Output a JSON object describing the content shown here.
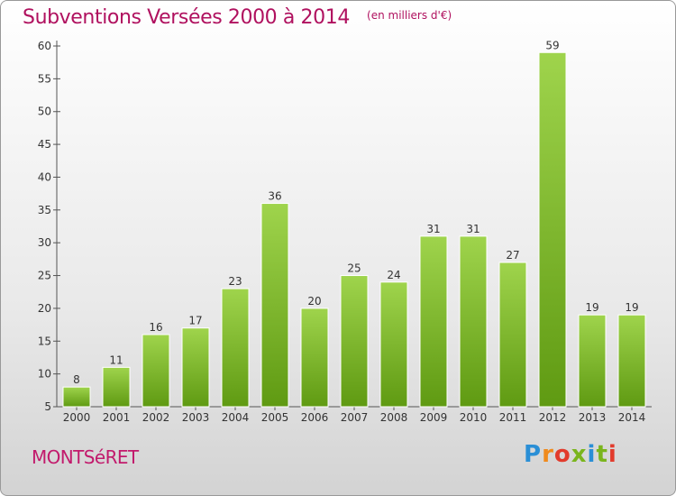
{
  "header": {
    "title": "Subventions Versées 2000 à 2014",
    "subtitle": "(en milliers d'€)"
  },
  "footer": {
    "town": "MONTSéRET",
    "logo_text": "Proxiti"
  },
  "colors": {
    "title": "#b0115f",
    "bar_top": "#9fd44c",
    "bar_bottom": "#5f9a12",
    "axis": "#555555"
  },
  "chart_data": {
    "type": "bar",
    "title": "Subventions Versées 2000 à 2014",
    "subtitle": "(en milliers d'€)",
    "xlabel": "",
    "ylabel": "",
    "categories": [
      "2000",
      "2001",
      "2002",
      "2003",
      "2004",
      "2005",
      "2006",
      "2007",
      "2008",
      "2009",
      "2010",
      "2011",
      "2012",
      "2013",
      "2014"
    ],
    "values": [
      8,
      11,
      16,
      17,
      23,
      36,
      20,
      25,
      24,
      31,
      31,
      27,
      59,
      19,
      19
    ],
    "ylim": [
      5,
      60
    ],
    "yticks": [
      5,
      10,
      15,
      20,
      25,
      30,
      35,
      40,
      45,
      50,
      55,
      60
    ],
    "grid": false,
    "legend": "none"
  }
}
